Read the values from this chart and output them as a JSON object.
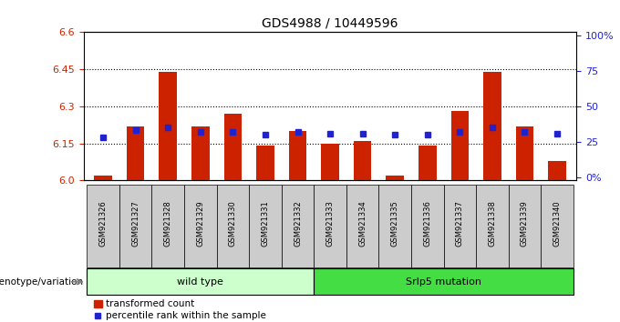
{
  "title": "GDS4988 / 10449596",
  "samples": [
    "GSM921326",
    "GSM921327",
    "GSM921328",
    "GSM921329",
    "GSM921330",
    "GSM921331",
    "GSM921332",
    "GSM921333",
    "GSM921334",
    "GSM921335",
    "GSM921336",
    "GSM921337",
    "GSM921338",
    "GSM921339",
    "GSM921340"
  ],
  "red_values": [
    6.02,
    6.22,
    6.44,
    6.22,
    6.27,
    6.14,
    6.2,
    6.15,
    6.16,
    6.02,
    6.14,
    6.28,
    6.44,
    6.22,
    6.08
  ],
  "blue_values": [
    28,
    33,
    35,
    32,
    32,
    30,
    32,
    31,
    31,
    30,
    30,
    32,
    35,
    32,
    31
  ],
  "ymin": 6.0,
  "ymax": 6.6,
  "yticks": [
    6.0,
    6.15,
    6.3,
    6.45,
    6.6
  ],
  "right_yticks": [
    0,
    25,
    50,
    75,
    100
  ],
  "right_ylabels": [
    "0%",
    "25",
    "50",
    "75",
    "100%"
  ],
  "bar_color": "#cc2200",
  "dot_color": "#2222cc",
  "plot_bg_color": "#ffffff",
  "tick_label_color_left": "#cc2200",
  "tick_label_color_right": "#2222cc",
  "group1_label": "wild type",
  "group2_label": "Srlp5 mutation",
  "group1_indices": [
    0,
    1,
    2,
    3,
    4,
    5,
    6
  ],
  "group2_indices": [
    7,
    8,
    9,
    10,
    11,
    12,
    13,
    14
  ],
  "group_bg_color1": "#ccffcc",
  "group_bg_color2": "#44dd44",
  "legend_label_red": "transformed count",
  "legend_label_blue": "percentile rank within the sample",
  "genotype_label": "genotype/variation",
  "grid_dotted_values": [
    6.15,
    6.3,
    6.45
  ],
  "bar_width": 0.55,
  "xtick_bg_color": "#cccccc"
}
